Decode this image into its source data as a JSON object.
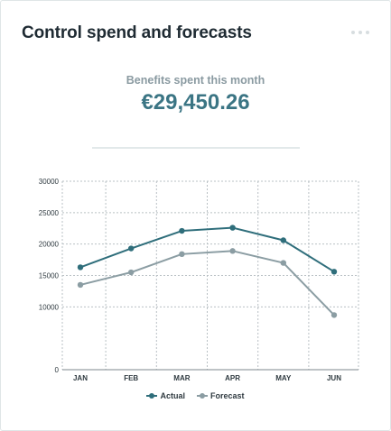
{
  "card": {
    "title": "Control spend and forecasts",
    "menu_icon": "more-horizontal-icon"
  },
  "summary": {
    "label": "Benefits spent this month",
    "value": "€29,450.26"
  },
  "colors": {
    "actual": "#2f6e7b",
    "forecast": "#8b9da3",
    "accent": "#3b7584"
  },
  "chart_data": {
    "type": "line",
    "x": [
      "JAN",
      "FEB",
      "MAR",
      "APR",
      "MAY",
      "JUN"
    ],
    "ylim": [
      0,
      30000
    ],
    "yticks": [
      "0",
      "10000",
      "15000",
      "20000",
      "25000",
      "30000"
    ],
    "grid": true,
    "legend": "bottom-center",
    "series": [
      {
        "name": "Actual",
        "values": [
          16300,
          19300,
          22100,
          22600,
          20600,
          15600
        ]
      },
      {
        "name": "Forecast",
        "values": [
          13500,
          15500,
          18400,
          18900,
          17000,
          8700
        ]
      }
    ]
  }
}
